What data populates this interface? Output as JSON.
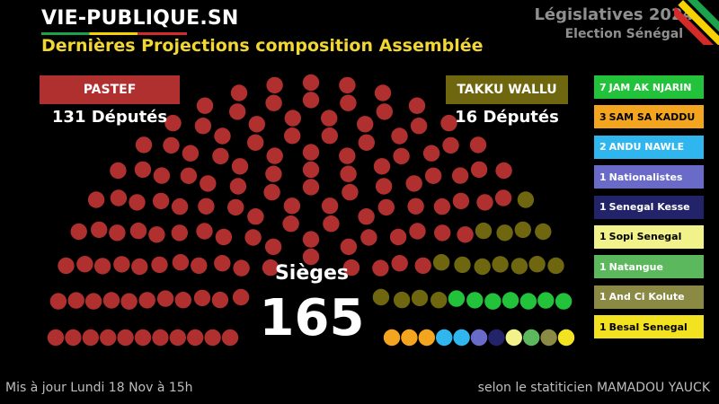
{
  "header": {
    "brand": "VIE-PUBLIQUE.SN",
    "subtitle": "Dernières Projections composition Assemblée",
    "event_title": "Législatives 2024",
    "event_subtitle": "Election Sénégal"
  },
  "seats": {
    "label": "Sièges",
    "total": "165"
  },
  "footer": {
    "left": "Mis à jour Lundi 18  Nov à 15h",
    "right": "selon le statiticien MAMADOU YAUCK"
  },
  "parties": {
    "pastef": {
      "name": "PASTEF",
      "count_label": "131 Députés",
      "color": "#b03030"
    },
    "takku": {
      "name": "TAKKU WALLU",
      "count_label": "16 Députés",
      "color": "#6f6610"
    }
  },
  "legend": [
    {
      "count": "7",
      "name": "JAM AK NJARIN",
      "bg": "#22c23a",
      "fg": "#ffffff"
    },
    {
      "count": "3",
      "name": "SAM SA KADDU",
      "bg": "#f3a51f",
      "fg": "#000000"
    },
    {
      "count": "2",
      "name": "ANDU NAWLE",
      "bg": "#2fb6ee",
      "fg": "#ffffff"
    },
    {
      "count": "1",
      "name": "Nationalistes",
      "bg": "#6a6ac8",
      "fg": "#ffffff"
    },
    {
      "count": "1",
      "name": "Senegal Kesse",
      "bg": "#23236a",
      "fg": "#ffffff"
    },
    {
      "count": "1",
      "name": "Sopi Senegal",
      "bg": "#f2f28a",
      "fg": "#000000"
    },
    {
      "count": "1",
      "name": "Natangue",
      "bg": "#5cb85c",
      "fg": "#ffffff"
    },
    {
      "count": "1",
      "name": "And Ci Kolute",
      "bg": "#8a8a45",
      "fg": "#ffffff"
    },
    {
      "count": "1",
      "name": "Besal Senegal",
      "bg": "#f3e21f",
      "fg": "#000000"
    }
  ],
  "chart_data": {
    "type": "parliament",
    "total": 165,
    "series": [
      {
        "name": "PASTEF",
        "value": 131,
        "color": "#b03030"
      },
      {
        "name": "TAKKU WALLU",
        "value": 16,
        "color": "#6f6610"
      },
      {
        "name": "JAM AK NJARIN",
        "value": 7,
        "color": "#22c23a"
      },
      {
        "name": "SAM SA KADDU",
        "value": 3,
        "color": "#f3a51f"
      },
      {
        "name": "ANDU NAWLE",
        "value": 2,
        "color": "#2fb6ee"
      },
      {
        "name": "Nationalistes",
        "value": 1,
        "color": "#6a6ac8"
      },
      {
        "name": "Senegal Kesse",
        "value": 1,
        "color": "#23236a"
      },
      {
        "name": "Sopi Senegal",
        "value": 1,
        "color": "#f2f28a"
      },
      {
        "name": "Natangue",
        "value": 1,
        "color": "#5cb85c"
      },
      {
        "name": "And Ci Kolute",
        "value": 1,
        "color": "#8a8a45"
      },
      {
        "name": "Besal Senegal",
        "value": 1,
        "color": "#f3e21f"
      }
    ]
  }
}
